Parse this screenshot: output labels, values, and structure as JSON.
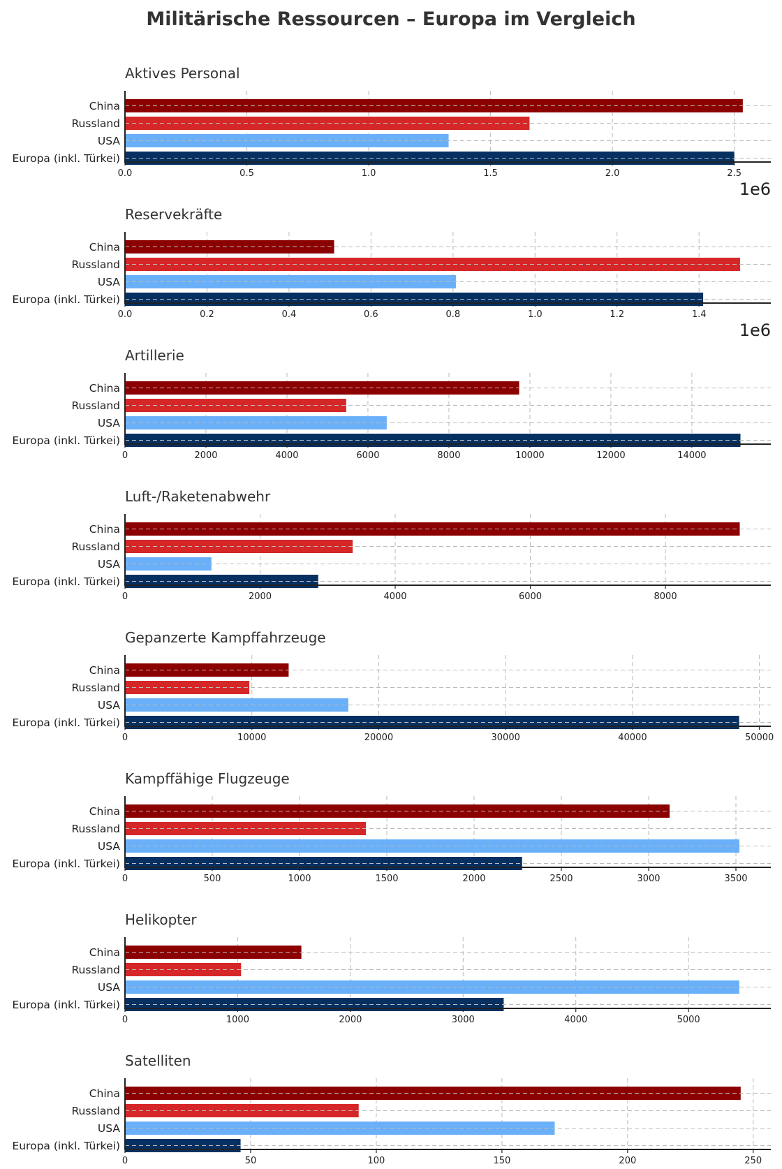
{
  "title": "Militärische Ressourcen – Europa im Vergleich",
  "colors": {
    "China": "#8B0000",
    "Russland": "#D62728",
    "USA": "#6AB0F8",
    "Europa (inkl. Türkei)": "#053061"
  },
  "chart_data": [
    {
      "type": "bar",
      "orientation": "horizontal",
      "title": "Aktives Personal",
      "categories": [
        "China",
        "Russland",
        "USA",
        "Europa (inkl. Türkei)"
      ],
      "values": [
        2535000,
        1660000,
        1328000,
        2500000
      ],
      "xlim": [
        0,
        2650000
      ],
      "ticks": [
        0,
        500000,
        1000000,
        1500000,
        2000000,
        2500000
      ],
      "tick_labels": [
        "0.0",
        "0.5",
        "1.0",
        "1.5",
        "2.0",
        "2.5"
      ],
      "offset_label": "1e6"
    },
    {
      "type": "bar",
      "orientation": "horizontal",
      "title": "Reservekräfte",
      "categories": [
        "China",
        "Russland",
        "USA",
        "Europa (inkl. Türkei)"
      ],
      "values": [
        510000,
        1500000,
        807000,
        1410000
      ],
      "xlim": [
        0,
        1575000
      ],
      "ticks": [
        0,
        200000,
        400000,
        600000,
        800000,
        1000000,
        1200000,
        1400000
      ],
      "tick_labels": [
        "0.0",
        "0.2",
        "0.4",
        "0.6",
        "0.8",
        "1.0",
        "1.2",
        "1.4"
      ],
      "offset_label": "1e6"
    },
    {
      "type": "bar",
      "orientation": "horizontal",
      "title": "Artillerie",
      "categories": [
        "China",
        "Russland",
        "USA",
        "Europa (inkl. Türkei)"
      ],
      "values": [
        9735,
        5463,
        6465,
        15200
      ],
      "xlim": [
        0,
        15950
      ],
      "ticks": [
        0,
        2000,
        4000,
        6000,
        8000,
        10000,
        12000,
        14000
      ],
      "tick_labels": [
        "0",
        "2000",
        "4000",
        "6000",
        "8000",
        "10000",
        "12000",
        "14000"
      ],
      "offset_label": ""
    },
    {
      "type": "bar",
      "orientation": "horizontal",
      "title": "Luft-/Raketenabwehr",
      "categories": [
        "China",
        "Russland",
        "USA",
        "Europa (inkl. Türkei)"
      ],
      "values": [
        9100,
        3370,
        1280,
        2860
      ],
      "xlim": [
        0,
        9560
      ],
      "ticks": [
        0,
        2000,
        4000,
        6000,
        8000
      ],
      "tick_labels": [
        "0",
        "2000",
        "4000",
        "6000",
        "8000"
      ],
      "offset_label": ""
    },
    {
      "type": "bar",
      "orientation": "horizontal",
      "title": "Gepanzerte Kampffahrzeuge",
      "categories": [
        "China",
        "Russland",
        "USA",
        "Europa (inkl. Türkei)"
      ],
      "values": [
        12900,
        9800,
        17600,
        48400
      ],
      "xlim": [
        0,
        50900
      ],
      "ticks": [
        0,
        10000,
        20000,
        30000,
        40000,
        50000
      ],
      "tick_labels": [
        "0",
        "10000",
        "20000",
        "30000",
        "40000",
        "50000"
      ],
      "offset_label": ""
    },
    {
      "type": "bar",
      "orientation": "horizontal",
      "title": "Kampffähige Flugzeuge",
      "categories": [
        "China",
        "Russland",
        "USA",
        "Europa (inkl. Türkei)"
      ],
      "values": [
        3120,
        1380,
        3520,
        2275
      ],
      "xlim": [
        0,
        3700
      ],
      "ticks": [
        0,
        500,
        1000,
        1500,
        2000,
        2500,
        3000,
        3500
      ],
      "tick_labels": [
        "0",
        "500",
        "1000",
        "1500",
        "2000",
        "2500",
        "3000",
        "3500"
      ],
      "offset_label": ""
    },
    {
      "type": "bar",
      "orientation": "horizontal",
      "title": "Helikopter",
      "categories": [
        "China",
        "Russland",
        "USA",
        "Europa (inkl. Türkei)"
      ],
      "values": [
        1565,
        1030,
        5450,
        3360
      ],
      "xlim": [
        0,
        5730
      ],
      "ticks": [
        0,
        1000,
        2000,
        3000,
        4000,
        5000
      ],
      "tick_labels": [
        "0",
        "1000",
        "2000",
        "3000",
        "4000",
        "5000"
      ],
      "offset_label": ""
    },
    {
      "type": "bar",
      "orientation": "horizontal",
      "title": "Satelliten",
      "categories": [
        "China",
        "Russland",
        "USA",
        "Europa (inkl. Türkei)"
      ],
      "values": [
        245,
        93,
        171,
        46
      ],
      "xlim": [
        0,
        257
      ],
      "ticks": [
        0,
        50,
        100,
        150,
        200,
        250
      ],
      "tick_labels": [
        "0",
        "50",
        "100",
        "150",
        "200",
        "250"
      ],
      "offset_label": ""
    }
  ]
}
